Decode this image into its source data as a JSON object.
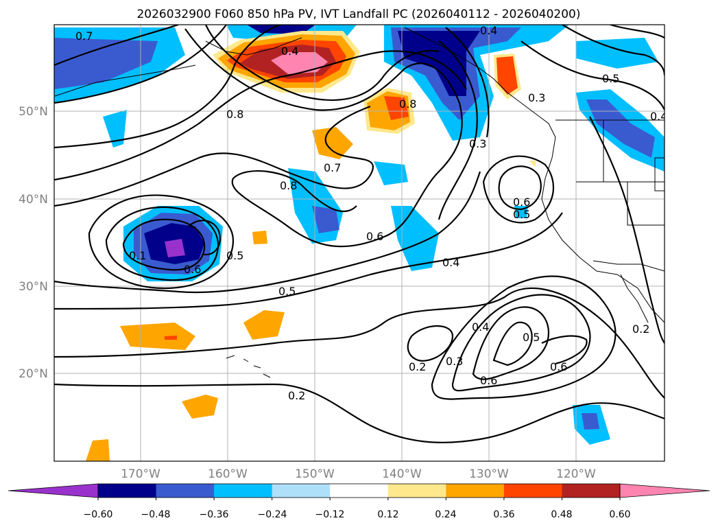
{
  "title": "2026032900 F060 850 hPa PV, IVT Landfall PC (2026040112 - 2026040200)",
  "lat_labels": [
    "50°N",
    "40°N",
    "30°N",
    "20°N"
  ],
  "lon_labels": [
    "170°W",
    "160°W",
    "150°W",
    "140°W",
    "130°W",
    "120°W"
  ],
  "colorbar": {
    "tick_labels": [
      "−0.60",
      "−0.48",
      "−0.36",
      "−0.24",
      "−0.12",
      "0.12",
      "0.24",
      "0.36",
      "0.48",
      "0.60"
    ],
    "colors": [
      "#9932cc",
      "#00008b",
      "#3a5bd0",
      "#00bfff",
      "#afe0fa",
      "#ffffff",
      "#ffe88c",
      "#ffa500",
      "#ff4500",
      "#b22222",
      "#ff85b0"
    ]
  },
  "contour_labels": [
    "0.7",
    "0.4",
    "0.8",
    "0.8",
    "0.7",
    "0.8",
    "0.3",
    "0.4",
    "0.5",
    "0.6",
    "0.5",
    "0.1",
    "0.6",
    "0.5",
    "0.5",
    "0.6",
    "0.4",
    "0.4",
    "0.5",
    "0.6",
    "0.3",
    "0.2",
    "0.6",
    "0.2",
    "0.2",
    "0.3",
    "0.4"
  ]
}
